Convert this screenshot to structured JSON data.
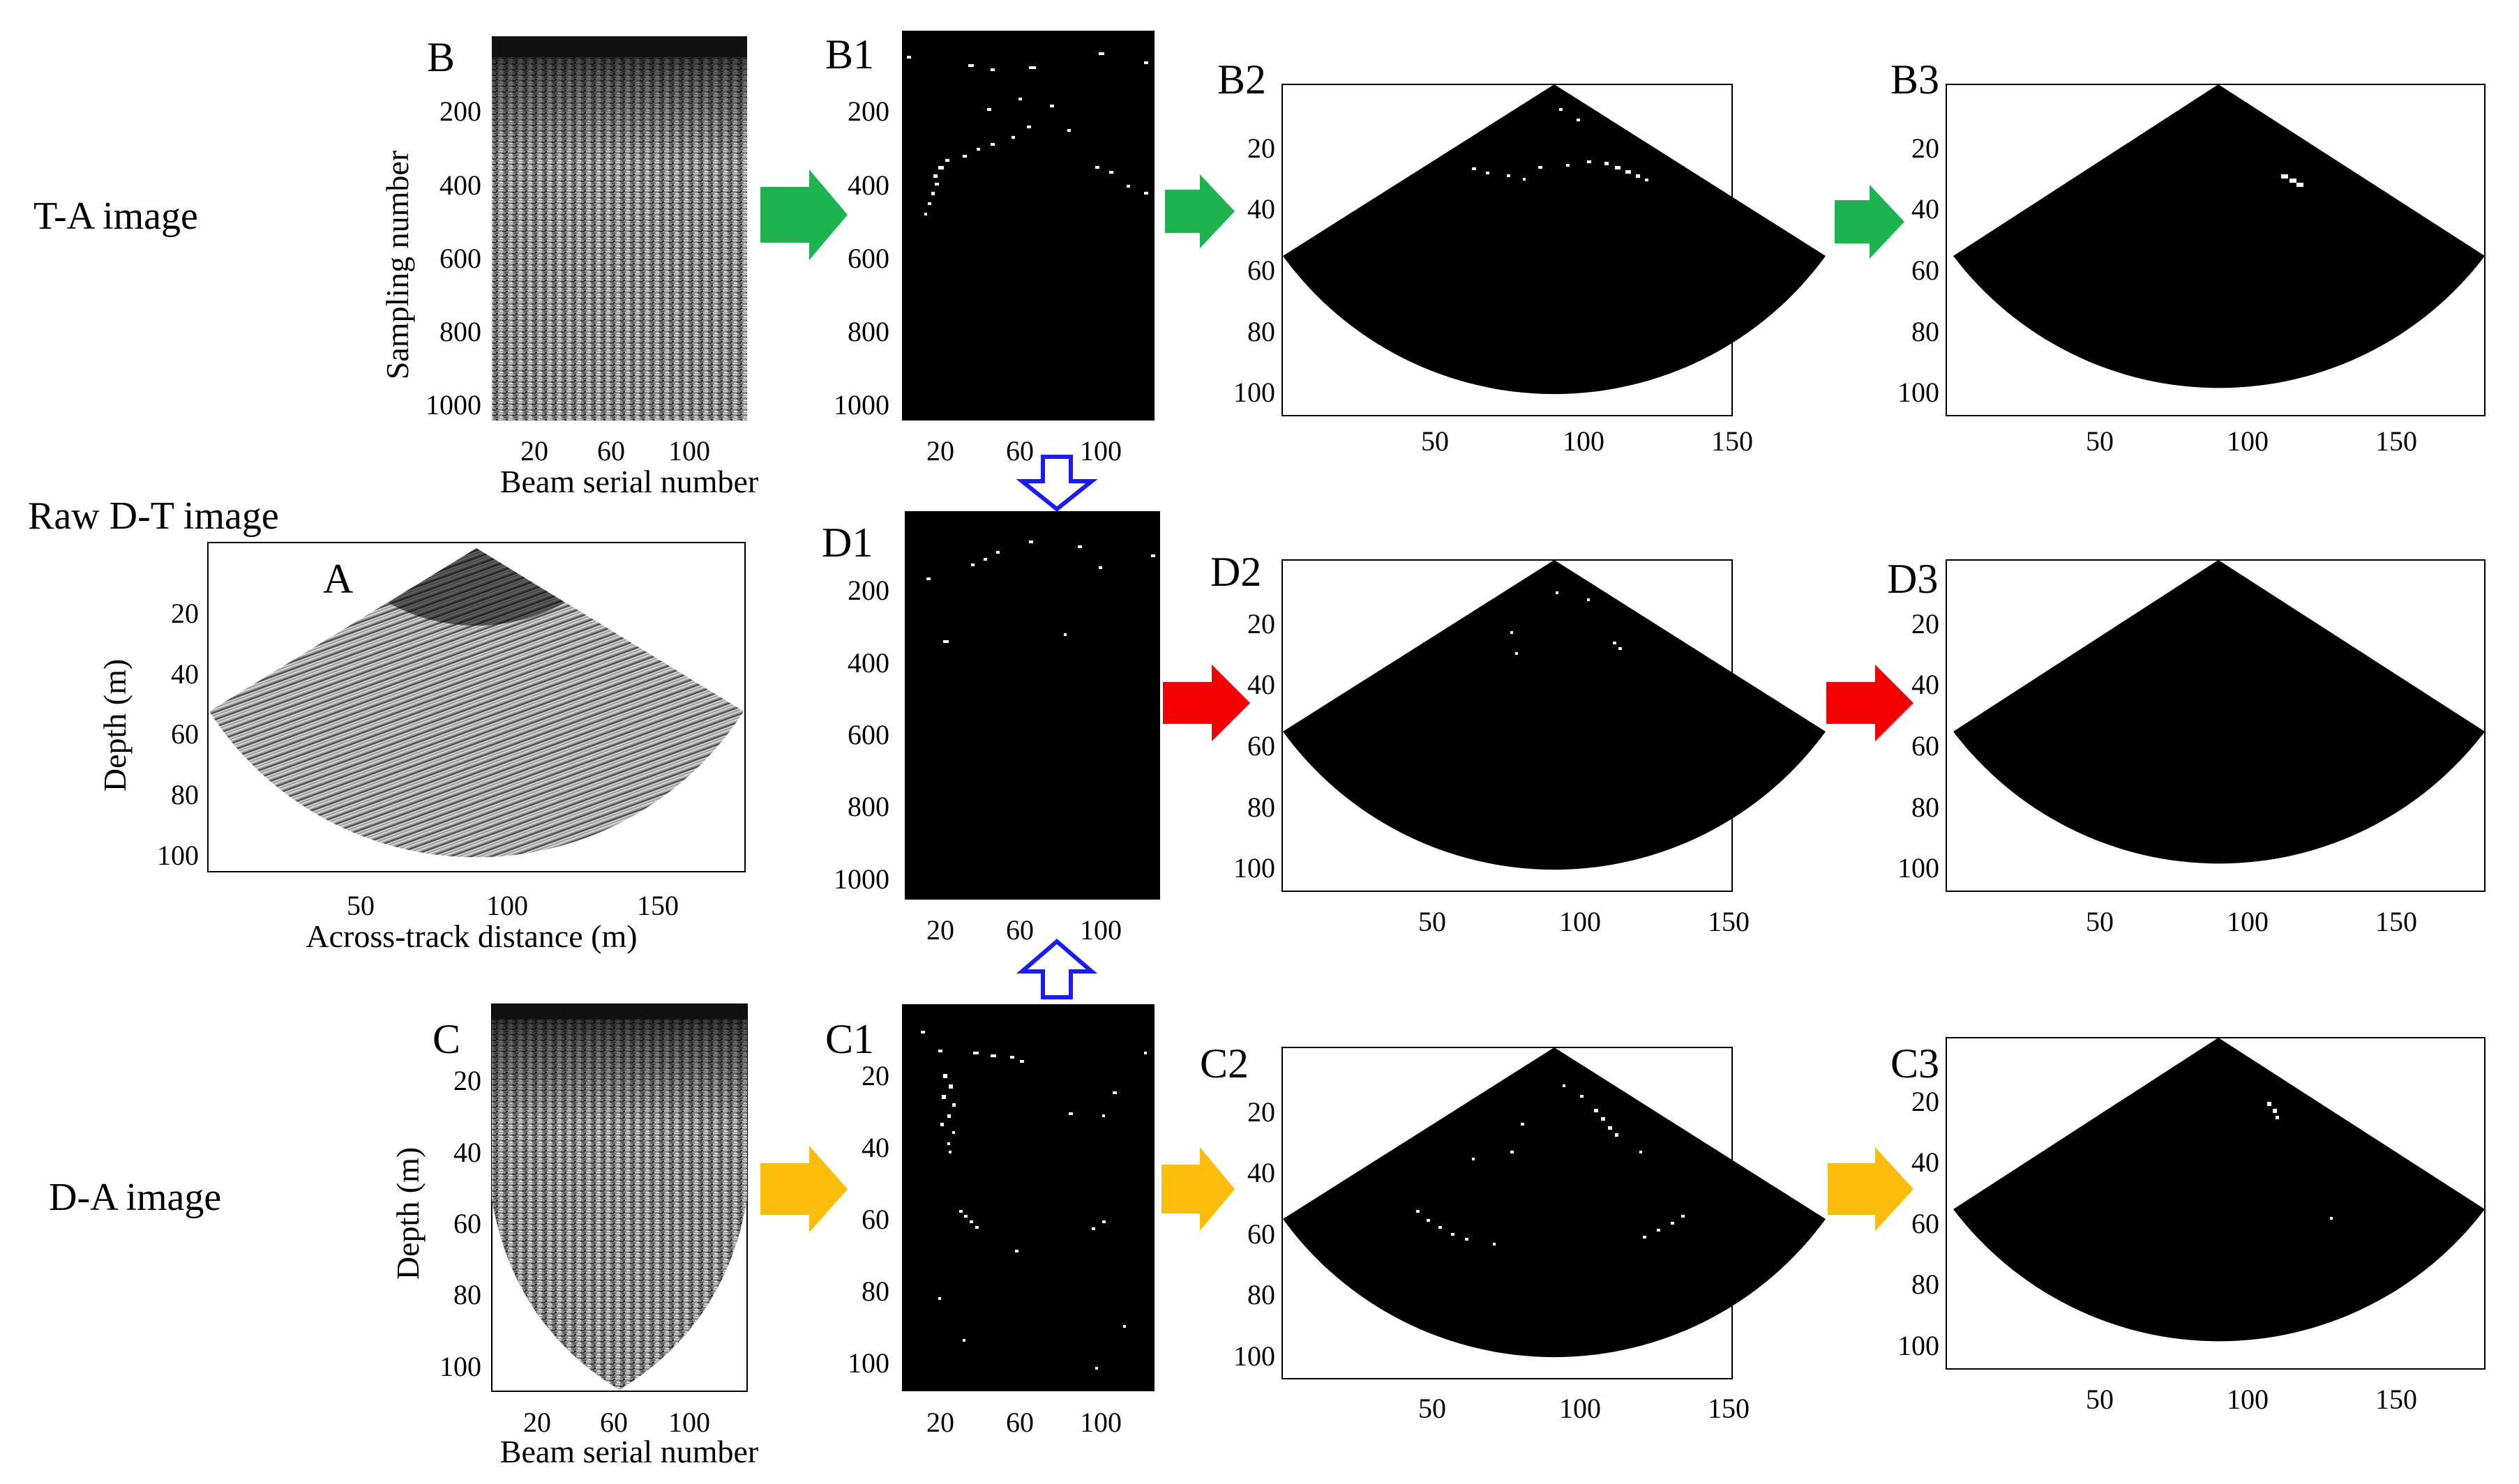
{
  "row_labels": {
    "top": "T-A image",
    "middle": "Raw D-T image",
    "bottom": "D-A image"
  },
  "colors": {
    "green_arrow": "#1db34f",
    "red_arrow": "#f50000",
    "yellow_arrow": "#fbbd0a",
    "blue_arrow": "#1a1aff",
    "panel_background": "#000000",
    "figure_background": "#ffffff"
  },
  "panels": [
    {
      "id": "B",
      "label": "B",
      "kind": "rect-gray",
      "x_ticks": [
        "20",
        "60",
        "100"
      ],
      "y_ticks": [
        "200",
        "400",
        "600",
        "800",
        "1000"
      ],
      "x_title": "Beam serial number",
      "y_title": "Sampling number"
    },
    {
      "id": "B1",
      "label": "B1",
      "kind": "rect-binary",
      "x_ticks": [
        "20",
        "60",
        "100"
      ],
      "y_ticks": [
        "200",
        "400",
        "600",
        "800",
        "1000"
      ],
      "x_title": "",
      "y_title": ""
    },
    {
      "id": "B2",
      "label": "B2",
      "kind": "fan-binary",
      "x_ticks": [
        "50",
        "100",
        "150"
      ],
      "y_ticks": [
        "20",
        "40",
        "60",
        "80",
        "100"
      ],
      "x_title": "",
      "y_title": ""
    },
    {
      "id": "B3",
      "label": "B3",
      "kind": "fan-binary",
      "x_ticks": [
        "50",
        "100",
        "150"
      ],
      "y_ticks": [
        "20",
        "40",
        "60",
        "80",
        "100"
      ],
      "x_title": "",
      "y_title": ""
    },
    {
      "id": "A",
      "label": "A",
      "kind": "fan-gray",
      "x_ticks": [
        "50",
        "100",
        "150"
      ],
      "y_ticks": [
        "20",
        "40",
        "60",
        "80",
        "100"
      ],
      "x_title": "Across-track distance (m)",
      "y_title": "Depth (m)"
    },
    {
      "id": "D1",
      "label": "D1",
      "kind": "rect-binary",
      "x_ticks": [
        "20",
        "60",
        "100"
      ],
      "y_ticks": [
        "200",
        "400",
        "600",
        "800",
        "1000"
      ],
      "x_title": "",
      "y_title": ""
    },
    {
      "id": "D2",
      "label": "D2",
      "kind": "fan-binary",
      "x_ticks": [
        "50",
        "100",
        "150"
      ],
      "y_ticks": [
        "20",
        "40",
        "60",
        "80",
        "100"
      ],
      "x_title": "",
      "y_title": ""
    },
    {
      "id": "D3",
      "label": "D3",
      "kind": "fan-binary",
      "x_ticks": [
        "50",
        "100",
        "150"
      ],
      "y_ticks": [
        "20",
        "40",
        "60",
        "80",
        "100"
      ],
      "x_title": "",
      "y_title": ""
    },
    {
      "id": "C",
      "label": "C",
      "kind": "vee-gray",
      "x_ticks": [
        "20",
        "60",
        "100"
      ],
      "y_ticks": [
        "20",
        "40",
        "60",
        "80",
        "100"
      ],
      "x_title": "Beam serial number",
      "y_title": "Depth (m)"
    },
    {
      "id": "C1",
      "label": "C1",
      "kind": "rect-binary",
      "x_ticks": [
        "20",
        "60",
        "100"
      ],
      "y_ticks": [
        "20",
        "40",
        "60",
        "80",
        "100"
      ],
      "x_title": "",
      "y_title": ""
    },
    {
      "id": "C2",
      "label": "C2",
      "kind": "fan-binary",
      "x_ticks": [
        "50",
        "100",
        "150"
      ],
      "y_ticks": [
        "20",
        "40",
        "60",
        "80",
        "100"
      ],
      "x_title": "",
      "y_title": ""
    },
    {
      "id": "C3",
      "label": "C3",
      "kind": "fan-binary",
      "x_ticks": [
        "50",
        "100",
        "150"
      ],
      "y_ticks": [
        "20",
        "40",
        "60",
        "80",
        "100"
      ],
      "x_title": "",
      "y_title": ""
    }
  ],
  "arrows": [
    {
      "from": "B",
      "to": "B1",
      "color": "green",
      "direction": "right"
    },
    {
      "from": "B1",
      "to": "B2",
      "color": "green",
      "direction": "right"
    },
    {
      "from": "B2",
      "to": "B3",
      "color": "green",
      "direction": "right"
    },
    {
      "from": "D1",
      "to": "D2",
      "color": "red",
      "direction": "right"
    },
    {
      "from": "D2",
      "to": "D3",
      "color": "red",
      "direction": "right"
    },
    {
      "from": "C",
      "to": "C1",
      "color": "yellow",
      "direction": "right"
    },
    {
      "from": "C1",
      "to": "C2",
      "color": "yellow",
      "direction": "right"
    },
    {
      "from": "C2",
      "to": "C3",
      "color": "yellow",
      "direction": "right"
    },
    {
      "from": "B1",
      "to": "D1",
      "color": "blue",
      "direction": "down",
      "style": "outline"
    },
    {
      "from": "C1",
      "to": "D1",
      "color": "blue",
      "direction": "up",
      "style": "outline"
    }
  ]
}
